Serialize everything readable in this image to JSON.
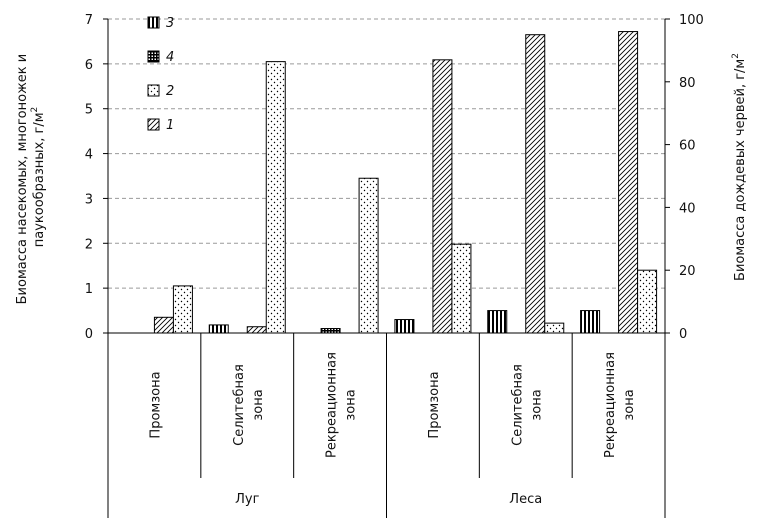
{
  "chart_data": {
    "type": "bar",
    "groups": [
      {
        "label": "Луг",
        "categories": [
          "Промзона",
          "Селитебная зона",
          "Рекреационная зона"
        ]
      },
      {
        "label": "Леса",
        "categories": [
          "Промзона",
          "Селитебная зона",
          "Рекреационная зона"
        ]
      }
    ],
    "category_label_lines": [
      [
        "Промзона"
      ],
      [
        "Селитебная",
        "зона"
      ],
      [
        "Рекреационная",
        "зона"
      ],
      [
        "Промзона"
      ],
      [
        "Селитебная",
        "зона"
      ],
      [
        "Рекреационная",
        "зона"
      ]
    ],
    "series": [
      {
        "name": "3",
        "axis": "left",
        "pattern": "vertical",
        "values": [
          0,
          0.18,
          0,
          0.3,
          0.5,
          0.5
        ]
      },
      {
        "name": "4",
        "axis": "left",
        "pattern": "grid",
        "values": [
          0,
          0,
          0.1,
          0,
          0,
          0
        ]
      },
      {
        "name": "1",
        "axis": "right",
        "pattern": "diagonal",
        "values": [
          5,
          2,
          0,
          87,
          95,
          96
        ]
      },
      {
        "name": "2",
        "axis": "left",
        "pattern": "dots",
        "values": [
          1.05,
          6.05,
          3.45,
          1.98,
          0.22,
          1.4
        ]
      }
    ],
    "legend_order": [
      "3",
      "4",
      "2",
      "1"
    ],
    "legend_placement": "top-left",
    "ylabel_left_line1": "Биомасса насекомых, многоножек и",
    "ylabel_left_line2": "паукообразных, г/м",
    "ylabel_right": "Биомасса дождевых червей, г/м",
    "ylabel_unit_sup": "2",
    "ylim_left": [
      0,
      7
    ],
    "yticks_left": [
      "0",
      "1",
      "2",
      "3",
      "4",
      "5",
      "6",
      "7"
    ],
    "ylim_right": [
      0,
      100
    ],
    "yticks_right": [
      "0",
      "20",
      "40",
      "60",
      "80",
      "100"
    ],
    "grid": "dashed horizontal"
  }
}
